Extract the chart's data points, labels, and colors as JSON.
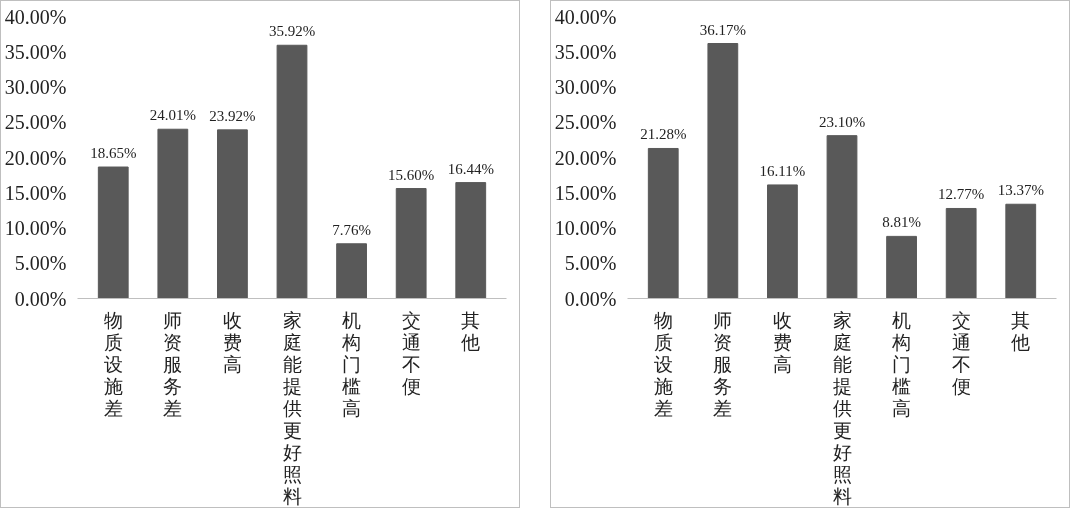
{
  "chart_data": [
    {
      "type": "bar",
      "categories": [
        "物质设施差",
        "师资服务差",
        "收费高",
        "家庭能提供更好照料",
        "机构门槛高",
        "交通不便",
        "其他"
      ],
      "values": [
        18.65,
        24.01,
        23.92,
        35.92,
        7.76,
        15.6,
        16.44
      ],
      "color": "#595959",
      "value_labels": [
        "18.65%",
        "24.01%",
        "23.92%",
        "35.92%",
        "7.76%",
        "15.60%",
        "16.44%"
      ],
      "ylim": [
        0,
        40
      ],
      "yticks": [
        {
          "value": 0,
          "label": "0.00%"
        },
        {
          "value": 5,
          "label": "5.00%"
        },
        {
          "value": 10,
          "label": "10.00%"
        },
        {
          "value": 15,
          "label": "15.00%"
        },
        {
          "value": 20,
          "label": "20.00%"
        },
        {
          "value": 25,
          "label": "25.00%"
        },
        {
          "value": 30,
          "label": "30.00%"
        },
        {
          "value": 35,
          "label": "35.00%"
        },
        {
          "value": 40,
          "label": "40.00%"
        }
      ],
      "grid": false
    },
    {
      "type": "bar",
      "categories": [
        "物质设施差",
        "师资服务差",
        "收费高",
        "家庭能提供更好照料",
        "机构门槛高",
        "交通不便",
        "其他"
      ],
      "values": [
        21.28,
        36.17,
        16.11,
        23.1,
        8.81,
        12.77,
        13.37
      ],
      "color": "#595959",
      "value_labels": [
        "21.28%",
        "36.17%",
        "16.11%",
        "23.10%",
        "8.81%",
        "12.77%",
        "13.37%"
      ],
      "ylim": [
        0,
        40
      ],
      "yticks": [
        {
          "value": 0,
          "label": "0.00%"
        },
        {
          "value": 5,
          "label": "5.00%"
        },
        {
          "value": 10,
          "label": "10.00%"
        },
        {
          "value": 15,
          "label": "15.00%"
        },
        {
          "value": 20,
          "label": "20.00%"
        },
        {
          "value": 25,
          "label": "25.00%"
        },
        {
          "value": 30,
          "label": "30.00%"
        },
        {
          "value": 35,
          "label": "35.00%"
        },
        {
          "value": 40,
          "label": "40.00%"
        }
      ],
      "grid": false
    }
  ]
}
